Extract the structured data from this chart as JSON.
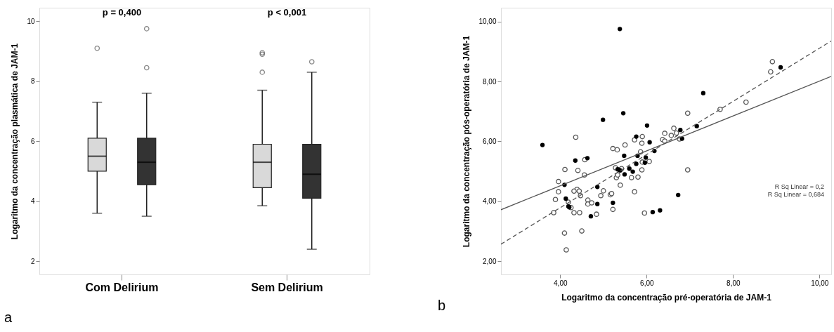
{
  "chart_data": [
    {
      "type": "box",
      "ylabel": "Logaritmo da concentração plasmática de JAM-1",
      "categories": [
        "Com Delirium",
        "Sem Delirium"
      ],
      "ylim": [
        1.56,
        10.45
      ],
      "yticks": [
        2,
        4,
        6,
        8,
        10
      ],
      "grid": false,
      "series": [
        {
          "color": "#d9d9d9",
          "boxes": [
            {
              "low": 3.6,
              "q1": 5.0,
              "median": 5.5,
              "q3": 6.1,
              "high": 7.3,
              "outliers": [
                9.1
              ]
            },
            {
              "low": 3.85,
              "q1": 4.45,
              "median": 5.3,
              "q3": 5.9,
              "high": 7.7,
              "outliers": [
                8.3,
                8.9,
                8.95
              ]
            }
          ]
        },
        {
          "color": "#333333",
          "boxes": [
            {
              "low": 3.5,
              "q1": 4.55,
              "median": 5.3,
              "q3": 6.1,
              "high": 7.6,
              "outliers": [
                8.45,
                9.75
              ]
            },
            {
              "low": 2.4,
              "q1": 4.1,
              "median": 4.9,
              "q3": 5.9,
              "high": 8.3,
              "outliers": [
                8.65
              ]
            }
          ]
        }
      ],
      "annotations": [
        "p = 0,400",
        "p < 0,001",
        "a"
      ]
    },
    {
      "type": "scatter",
      "xlabel": "Logaritmo da concentração pré-operatória de JAM-1",
      "ylabel": "Logaritmo da concentração pós-operatória de JAM-1",
      "xlim": [
        2.63,
        10.27
      ],
      "ylim": [
        1.56,
        10.46
      ],
      "xticks": [
        {
          "value": 4,
          "label": "4,00"
        },
        {
          "value": 6,
          "label": "6,00"
        },
        {
          "value": 8,
          "label": "8,00"
        },
        {
          "value": 10,
          "label": "10,00"
        }
      ],
      "yticks": [
        {
          "value": 2,
          "label": "2,00"
        },
        {
          "value": 4,
          "label": "4,00"
        },
        {
          "value": 6,
          "label": "6,00"
        },
        {
          "value": 8,
          "label": "8,00"
        },
        {
          "value": 10,
          "label": "10,00"
        }
      ],
      "grid": false,
      "series": [
        {
          "type": "scatter",
          "marker": "circle",
          "color": "#555555",
          "x": [
            4.36,
            5.22,
            5.32,
            5.5,
            5.72,
            5.9,
            5.89,
            5.86,
            6.37,
            6.42,
            6.42,
            6.57,
            6.63,
            6.69,
            6.76,
            6.95,
            7.7,
            8.3,
            8.87,
            8.91,
            4.57,
            4.11,
            4.41,
            4.56,
            3.96,
            3.96,
            3.89,
            3.85,
            4.39,
            4.44,
            4.32,
            4.47,
            4.19,
            4.25,
            4.32,
            4.45,
            4.64,
            4.64,
            4.73,
            4.84,
            4.94,
            5.0,
            5.16,
            5.19,
            5.22,
            5.28,
            5.3,
            5.33,
            5.42,
            5.39,
            5.65,
            5.8,
            5.72,
            5.89,
            5.95,
            5.9,
            6.06,
            6.95,
            4.1,
            4.5,
            4.14
          ],
          "values": [
            6.14,
            5.76,
            5.72,
            5.88,
            6.05,
            6.16,
            5.94,
            5.65,
            6.06,
            6.01,
            6.27,
            6.2,
            6.44,
            6.28,
            6.08,
            6.94,
            7.07,
            7.31,
            8.32,
            8.66,
            5.39,
            5.06,
            5.03,
            4.88,
            4.66,
            4.32,
            4.06,
            3.62,
            4.4,
            4.34,
            4.34,
            4.19,
            3.97,
            3.79,
            3.62,
            3.62,
            4.04,
            3.91,
            3.95,
            3.57,
            4.19,
            4.35,
            4.22,
            4.26,
            3.73,
            5.12,
            4.79,
            4.88,
            5.09,
            4.54,
            4.79,
            4.81,
            4.32,
            5.05,
            3.61,
            5.31,
            5.33,
            5.05,
            2.94,
            3.01,
            2.38
          ]
        },
        {
          "type": "scatter",
          "marker": "circle",
          "color": "#000000",
          "x": [
            3.59,
            5.38,
            5.46,
            4.99,
            6.01,
            5.76,
            6.07,
            5.48,
            5.79,
            5.98,
            6.18,
            6.78,
            6.82,
            7.16,
            7.31,
            9.1,
            4.63,
            4.35,
            4.1,
            4.13,
            4.19,
            4.21,
            4.71,
            4.86,
            4.86,
            5.22,
            5.33,
            5.36,
            5.39,
            5.49,
            5.6,
            5.68,
            5.76,
            5.96,
            6.14,
            6.31,
            6.73
          ],
          "values": [
            5.88,
            9.75,
            6.94,
            6.72,
            6.53,
            6.16,
            5.97,
            5.52,
            5.52,
            5.46,
            5.68,
            6.38,
            6.09,
            6.51,
            7.61,
            8.47,
            5.44,
            5.36,
            4.55,
            4.09,
            3.83,
            3.8,
            3.5,
            4.48,
            3.91,
            3.95,
            5.07,
            5.05,
            5.03,
            4.9,
            5.09,
            4.99,
            5.25,
            5.29,
            3.64,
            3.7,
            4.21
          ]
        },
        {
          "type": "line",
          "color": "#555555",
          "line_style": "solid",
          "x": [
            2.63,
            10.27
          ],
          "values": [
            3.72,
            8.17
          ]
        },
        {
          "type": "line",
          "color": "#555555",
          "line_style": "dashed",
          "x": [
            2.63,
            10.27
          ],
          "values": [
            2.57,
            9.35
          ]
        }
      ],
      "annotations": [
        "R Sq Linear = 0,2",
        "R Sq Linear = 0,684",
        "b"
      ]
    }
  ]
}
